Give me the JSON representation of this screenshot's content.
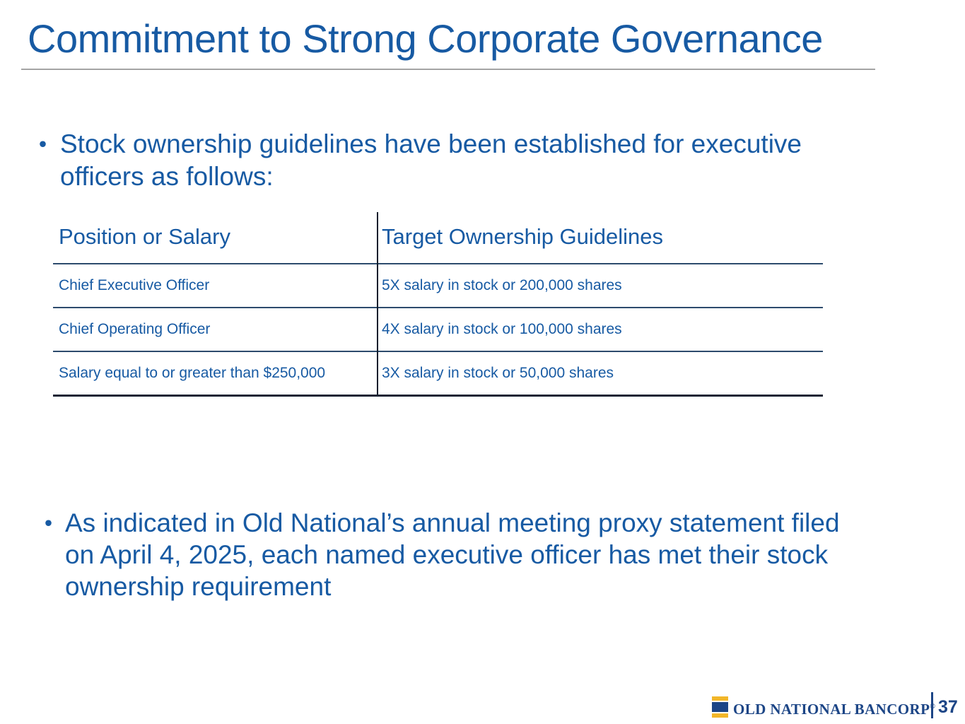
{
  "slide": {
    "title": "Commitment to Strong Corporate Governance"
  },
  "bullets": {
    "char": "•",
    "first": {
      "lines": [
        "Stock ownership guidelines have been established for executive",
        "officers as follows:"
      ]
    },
    "second": {
      "lines": [
        "As indicated in Old National’s annual meeting proxy statement filed",
        "on April 4, 2025, each named executive officer has met their stock",
        "ownership requirement"
      ]
    }
  },
  "table": {
    "headers": [
      "Position or Salary",
      "Target Ownership Guidelines"
    ],
    "rows": [
      {
        "position": "Chief Executive Officer",
        "guideline": "5X salary in stock or 200,000 shares"
      },
      {
        "position": "Chief Operating Officer",
        "guideline": "4X salary in stock or 100,000 shares"
      },
      {
        "position": "Salary equal to or greater than $250,000",
        "guideline": "3X salary in stock or 50,000 shares"
      }
    ]
  },
  "footer": {
    "logo_text": "OLD NATIONAL BANCORP",
    "registered_mark": "®",
    "page_number": "37"
  },
  "colors": {
    "text_blue": "#175AA3",
    "logo_navy": "#1C4586",
    "logo_gold": "#F2B629",
    "divider_gray": "#A4A4A4",
    "table_line": "#2D4B6D",
    "table_line_dark": "#192434"
  }
}
